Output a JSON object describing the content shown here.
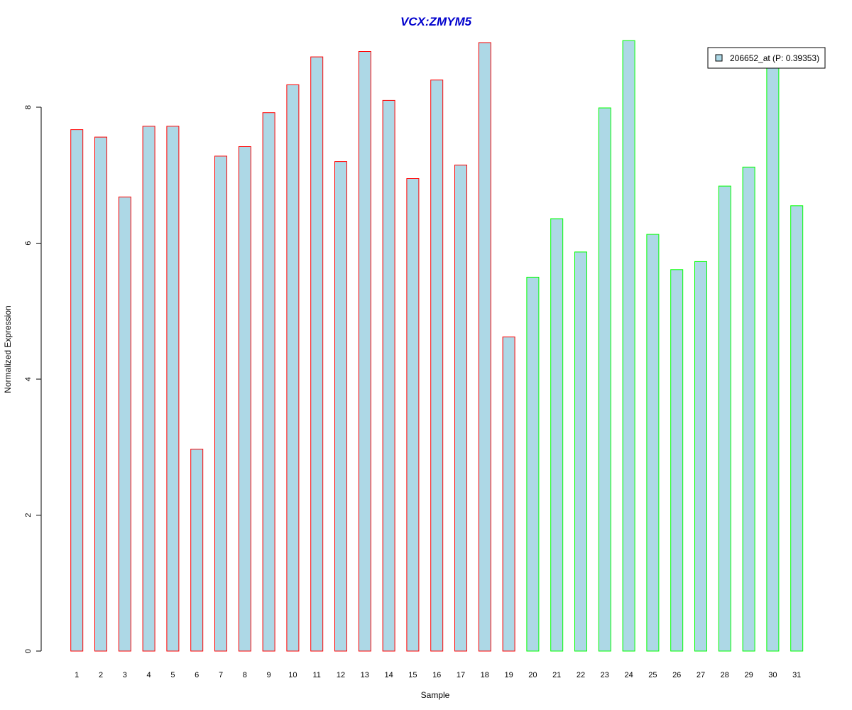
{
  "chart_data": {
    "type": "bar",
    "title": "VCX:ZMYM5",
    "xlabel": "Sample",
    "ylabel": "Normalized Expression",
    "categories": [
      "1",
      "2",
      "3",
      "4",
      "5",
      "6",
      "7",
      "8",
      "9",
      "10",
      "11",
      "12",
      "13",
      "14",
      "15",
      "16",
      "17",
      "18",
      "19",
      "20",
      "21",
      "22",
      "23",
      "24",
      "25",
      "26",
      "27",
      "28",
      "29",
      "30",
      "31"
    ],
    "series": [
      {
        "name": "206652_at (P: 0.39353)",
        "values": [
          7.67,
          7.56,
          6.68,
          7.72,
          7.72,
          2.97,
          7.28,
          7.42,
          7.92,
          8.33,
          8.74,
          7.2,
          8.82,
          8.1,
          6.95,
          8.4,
          7.15,
          8.95,
          4.62,
          5.5,
          6.36,
          5.87,
          7.99,
          8.98,
          6.13,
          5.61,
          5.73,
          6.84,
          7.12,
          8.65,
          6.55
        ]
      }
    ],
    "group_of_sample": [
      1,
      1,
      1,
      1,
      1,
      1,
      1,
      1,
      1,
      1,
      1,
      1,
      1,
      1,
      1,
      1,
      1,
      1,
      1,
      2,
      2,
      2,
      2,
      2,
      2,
      2,
      2,
      2,
      2,
      2,
      2
    ],
    "ylim": [
      0,
      9.0
    ],
    "yticks": [
      0,
      2,
      4,
      6,
      8
    ],
    "grid": false,
    "legend_position": "top-right",
    "colors": {
      "bar_fill": "#add8e6",
      "group1_border": "#ff0000",
      "group2_border": "#00ff00",
      "title": "#0000cd",
      "axis": "#000000"
    }
  }
}
